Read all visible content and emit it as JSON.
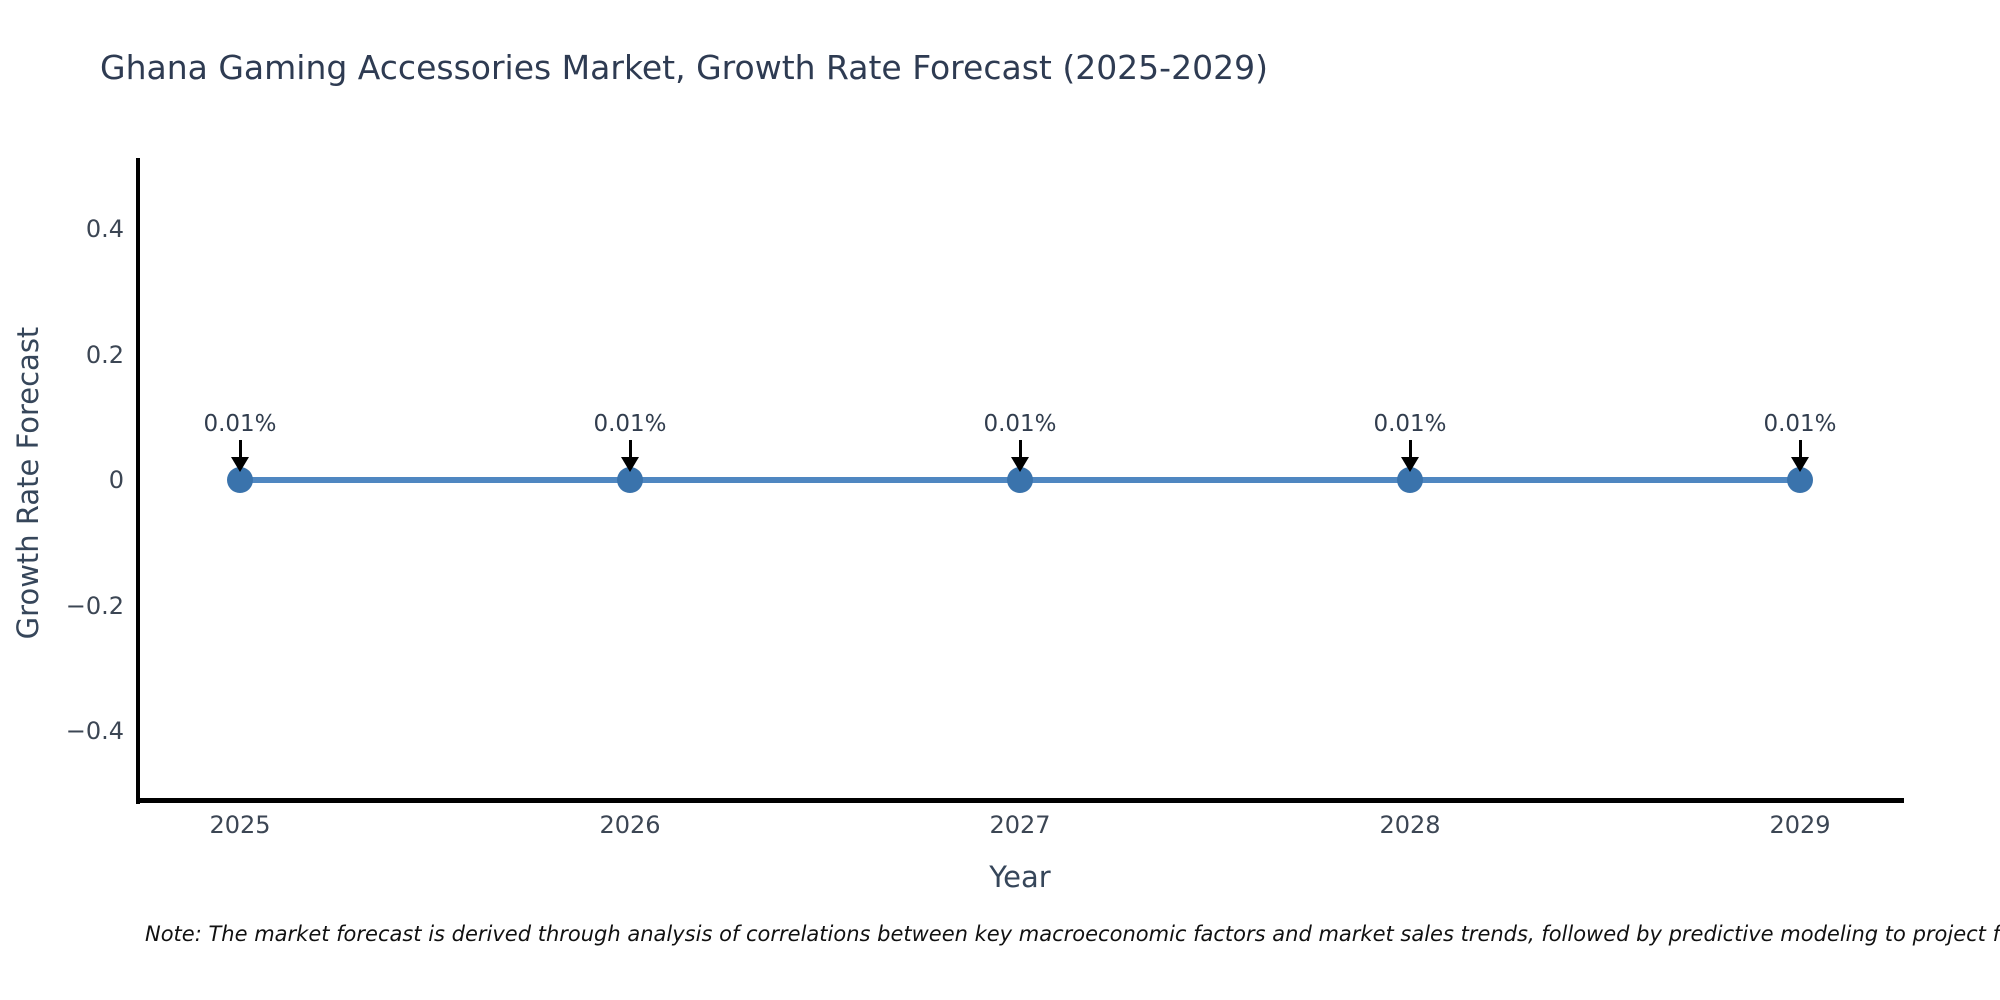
{
  "title": "Ghana Gaming Accessories Market, Growth Rate Forecast (2025-2029)",
  "note": "Note: The market forecast is derived through analysis of correlations between key macroeconomic factors and market sales trends, followed by predictive modeling to project future sales based on anticipated changes in these factors.",
  "colors": {
    "line": "#4f87c1",
    "marker": "#3a73ac",
    "axis": "#000000",
    "title_text": "#2e3b52",
    "tick_text": "#3c4654",
    "annotation_text": "#313d4e",
    "arrow": "#000000"
  },
  "chart_data": {
    "type": "line",
    "title": "Ghana Gaming Accessories Market, Growth Rate Forecast (2025-2029)",
    "xlabel": "Year",
    "ylabel": "Growth Rate Forecast",
    "x": [
      2025,
      2026,
      2027,
      2028,
      2029
    ],
    "xtick_labels": [
      "2025",
      "2026",
      "2027",
      "2028",
      "2029"
    ],
    "series": [
      {
        "name": "Growth Rate Forecast",
        "values": [
          0.01,
          0.01,
          0.01,
          0.01,
          0.01
        ],
        "unit": "percent"
      }
    ],
    "point_labels": [
      "0.01%",
      "0.01%",
      "0.01%",
      "0.01%",
      "0.01%"
    ],
    "yticks": [
      0.4,
      0.2,
      0,
      -0.2,
      -0.4
    ],
    "ytick_labels": [
      "0.4",
      "0.2",
      "0",
      "−0.2",
      "−0.4"
    ],
    "ylim": [
      -0.51,
      0.51
    ],
    "grid": false,
    "legend": "none",
    "marker_style": "circle",
    "annotation_arrows": "down"
  }
}
